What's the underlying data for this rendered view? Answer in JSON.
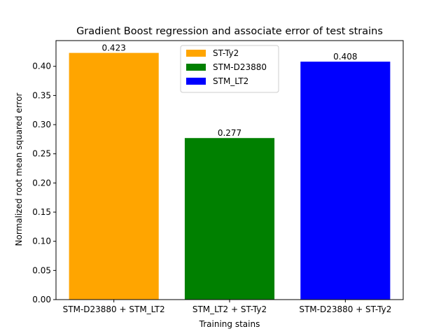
{
  "chart_data": {
    "type": "bar",
    "title": "Gradient Boost regression and associate error of test strains",
    "xlabel": "Training stains",
    "ylabel": "Normalized root mean squared error",
    "categories": [
      "STM-D23880 + STM_LT2",
      "STM_LT2 + ST-Ty2",
      "STM-D23880 + ST-Ty2"
    ],
    "values": [
      0.423,
      0.277,
      0.408
    ],
    "data_labels": [
      "0.423",
      "0.277",
      "0.408"
    ],
    "colors": [
      "#ffa500",
      "#008000",
      "#0000ff"
    ],
    "legend": [
      "ST-Ty2",
      "STM-D23880",
      "STM_LT2"
    ],
    "legend_placement": "upper-center",
    "ylim": [
      0,
      0.4441
    ],
    "yticks": [
      0.0,
      0.05,
      0.1,
      0.15,
      0.2,
      0.25,
      0.3,
      0.35,
      0.4
    ],
    "ytick_labels": [
      "0.00",
      "0.05",
      "0.10",
      "0.15",
      "0.20",
      "0.25",
      "0.30",
      "0.35",
      "0.40"
    ],
    "grid": false
  }
}
